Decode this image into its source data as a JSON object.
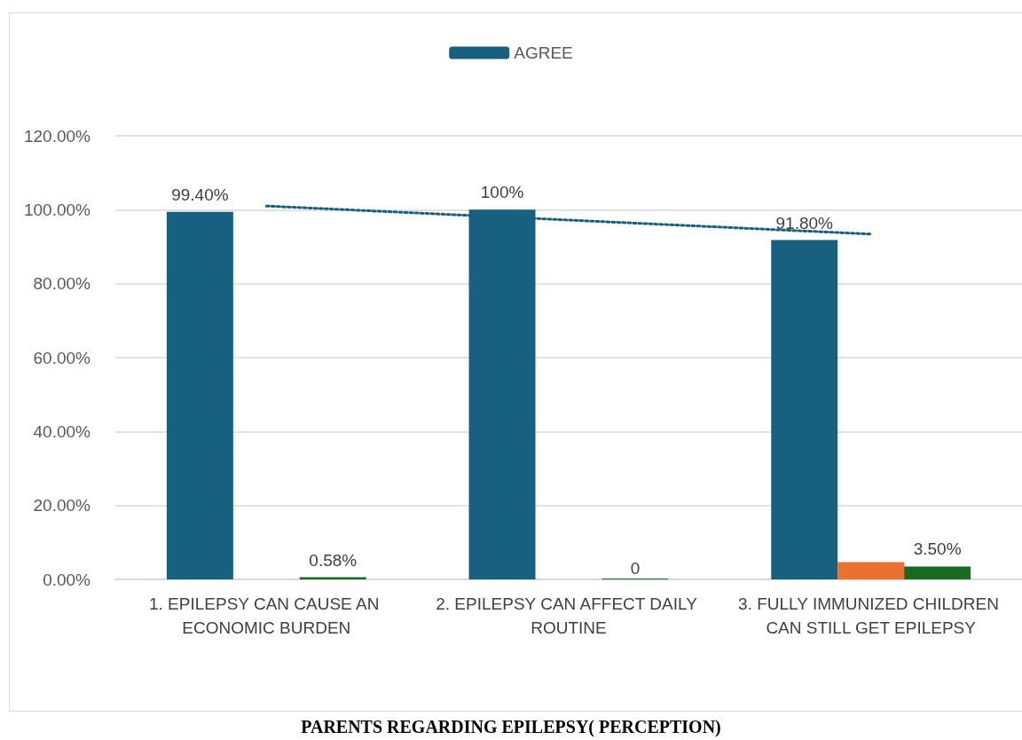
{
  "chart_data": {
    "type": "bar",
    "categories": [
      "1. EPILEPSY CAN CAUSE AN ECONOMIC BURDEN",
      "2. EPILEPSY CAN AFFECT DAILY ROUTINE",
      "3. FULLY IMMUNIZED CHILDREN CAN STILL GET EPILEPSY"
    ],
    "series": [
      {
        "name": "AGREE",
        "color": "#17607f",
        "values": [
          99.4,
          100,
          91.8
        ],
        "value_labels": [
          "99.40%",
          "100%",
          "91.80%"
        ]
      },
      {
        "color": "#e97132",
        "values": [
          null,
          null,
          4.7
        ]
      },
      {
        "color": "#196b24",
        "values": [
          0.58,
          0,
          3.5
        ],
        "value_labels": [
          "0.58%",
          "0",
          "3.50%"
        ]
      },
      {
        "type": "line",
        "color": "#17607f",
        "line_style": "dotted",
        "marker": "none",
        "values": [
          101.0,
          97.2,
          93.4
        ]
      }
    ],
    "ylim": [
      0,
      120
    ],
    "yticks": [
      {
        "value": 0,
        "label": "0.00%"
      },
      {
        "value": 20,
        "label": "20.00%"
      },
      {
        "value": 40,
        "label": "40.00%"
      },
      {
        "value": 60,
        "label": "60.00%"
      },
      {
        "value": 80,
        "label": "80.00%"
      },
      {
        "value": 100,
        "label": "100.00%"
      },
      {
        "value": 120,
        "label": "120.00%"
      }
    ],
    "grid": "y",
    "legend": "top",
    "annotations": [
      "PARENTS REGARDING EPILEPSY( PERCEPTION)"
    ]
  }
}
